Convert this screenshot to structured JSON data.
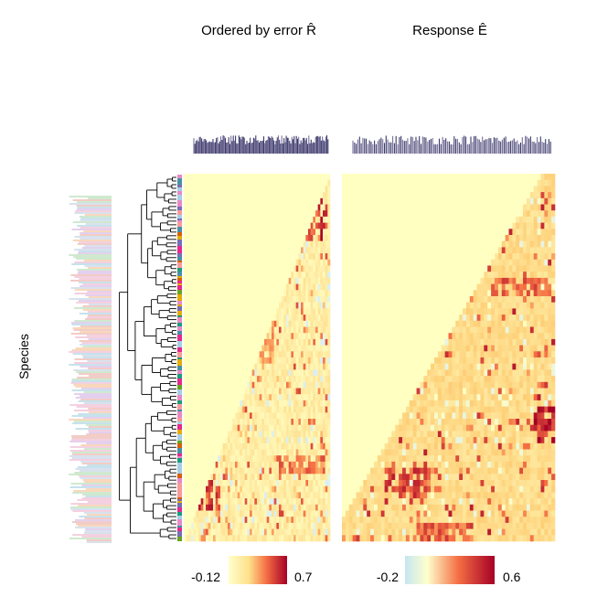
{
  "chart_data": [
    {
      "type": "heatmap",
      "title": "Ordered by error R̂",
      "ylabel": "Species",
      "triangle": "lower",
      "colorbar": {
        "min_label": "-0.12",
        "max_label": "0.7",
        "min": -0.12,
        "max": 0.7
      },
      "hot_blocks": [
        {
          "rows": [
            0.06,
            0.18
          ],
          "cols": [
            0.82,
            0.97
          ],
          "value": 0.6
        },
        {
          "rows": [
            0.34,
            0.5
          ],
          "cols": [
            0.44,
            0.6
          ],
          "value": 0.35
        },
        {
          "rows": [
            0.78,
            0.9
          ],
          "cols": [
            0.05,
            0.22
          ],
          "value": 0.55
        },
        {
          "rows": [
            0.76,
            0.8
          ],
          "cols": [
            0.62,
            0.95
          ],
          "value": 0.45
        }
      ]
    },
    {
      "type": "heatmap",
      "title": "Response Ê",
      "triangle": "lower",
      "colorbar": {
        "min_label": "-0.2",
        "max_label": "0.6",
        "min": -0.2,
        "max": 0.6
      },
      "hot_blocks": [
        {
          "rows": [
            0.62,
            0.72
          ],
          "cols": [
            0.9,
            1.0
          ],
          "value": 0.55
        },
        {
          "rows": [
            0.28,
            0.32
          ],
          "cols": [
            0.7,
            0.95
          ],
          "value": 0.4
        },
        {
          "rows": [
            0.8,
            0.88
          ],
          "cols": [
            0.2,
            0.4
          ],
          "value": 0.45
        },
        {
          "rows": [
            0.94,
            0.99
          ],
          "cols": [
            0.35,
            0.6
          ],
          "value": 0.4
        }
      ]
    }
  ],
  "colors": {
    "low": "#e0f3f8",
    "zero": "#ffffbf",
    "mid": "#fdae61",
    "high": "#a50026",
    "background_cell": "#ffffc2",
    "grid_line": "#f2f2f2"
  }
}
